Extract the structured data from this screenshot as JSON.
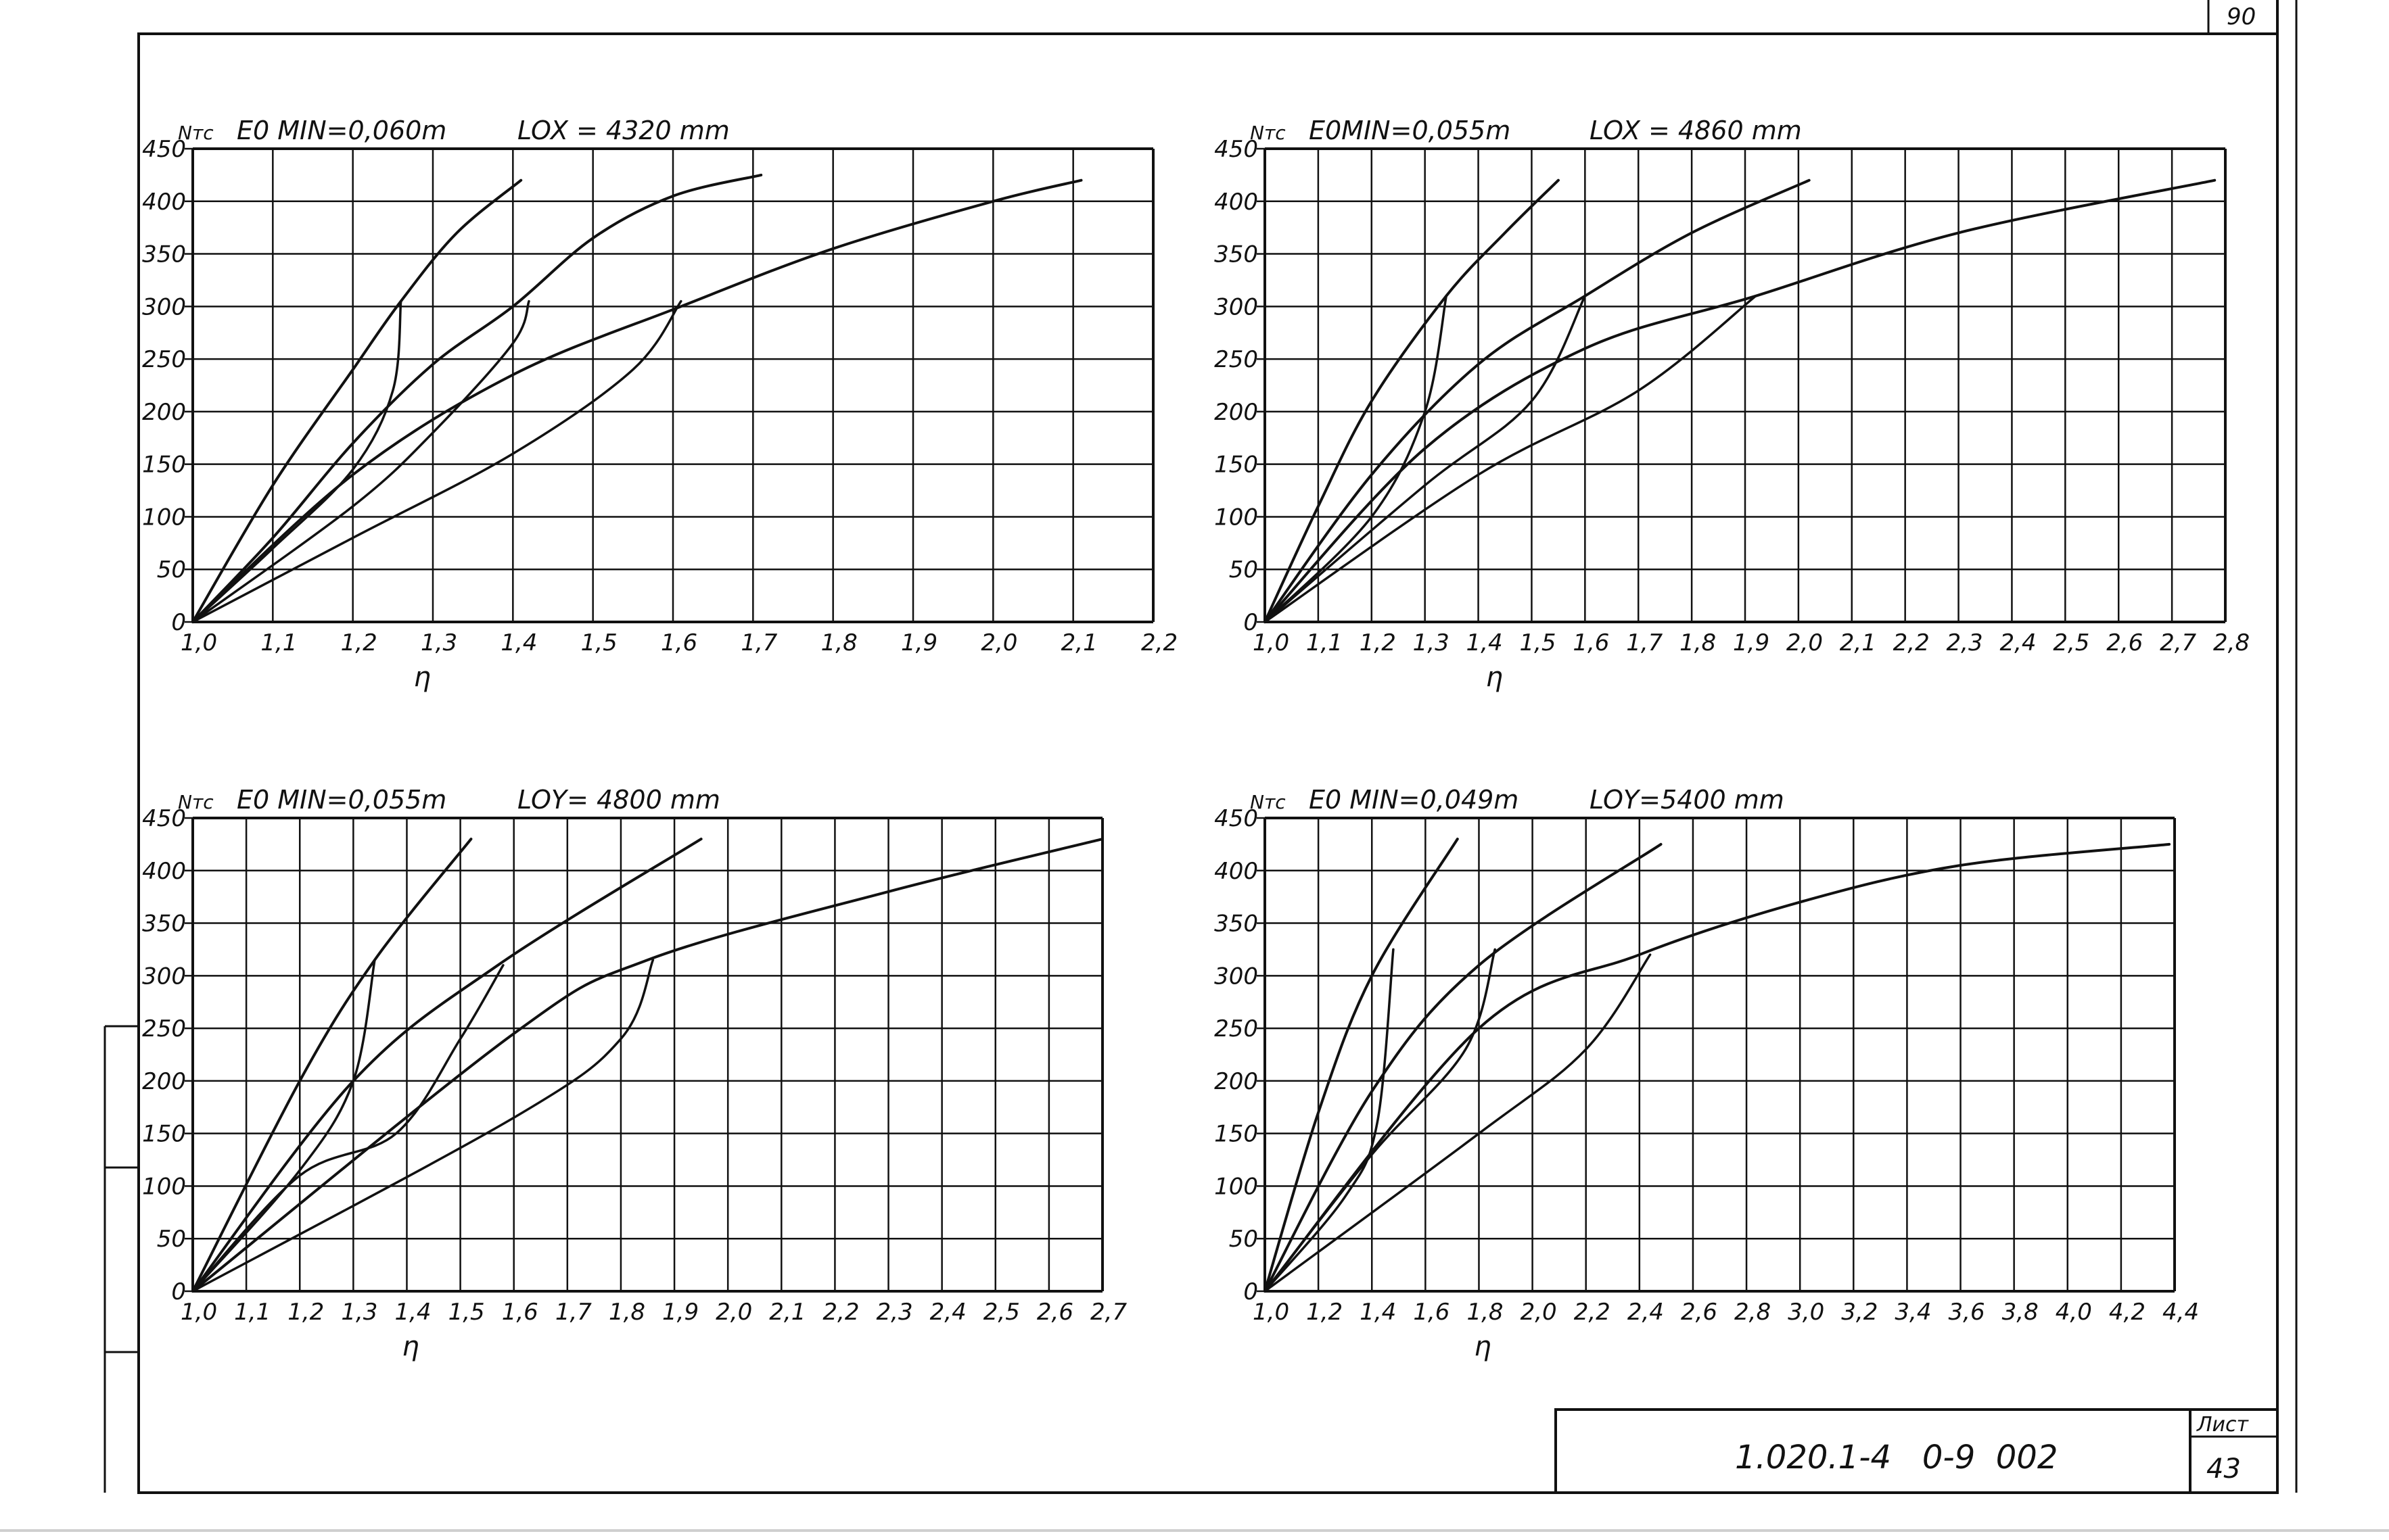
{
  "chart_data": [
    {
      "type": "line",
      "ylabel": "Nтс",
      "xlabel": "η",
      "header_left": "E0 MIN=0,060m",
      "header_right": "LOX = 4320 mm",
      "xlim": [
        1.0,
        2.2
      ],
      "ylim": [
        0,
        450
      ],
      "x_ticks": [
        "1,0",
        "1,1",
        "1,2",
        "1,3",
        "1,4",
        "1,5",
        "1,6",
        "1,7",
        "1,8",
        "1,9",
        "2,0",
        "2,1",
        "2,2"
      ],
      "y_ticks": [
        "0",
        "50",
        "100",
        "150",
        "200",
        "250",
        "300",
        "350",
        "400",
        "450"
      ],
      "series": [
        {
          "values": [
            [
              1.0,
              0
            ],
            [
              1.1,
              130
            ],
            [
              1.2,
              240
            ],
            [
              1.26,
              305
            ],
            [
              1.33,
              370
            ],
            [
              1.41,
              420
            ]
          ]
        },
        {
          "values": [
            [
              1.0,
              0
            ],
            [
              1.1,
              80
            ],
            [
              1.2,
              170
            ],
            [
              1.3,
              245
            ],
            [
              1.4,
              300
            ],
            [
              1.5,
              365
            ],
            [
              1.6,
              405
            ],
            [
              1.71,
              425
            ]
          ]
        },
        {
          "values": [
            [
              1.0,
              0
            ],
            [
              1.2,
              140
            ],
            [
              1.4,
              235
            ],
            [
              1.61,
              300
            ],
            [
              1.8,
              355
            ],
            [
              2.0,
              400
            ],
            [
              2.11,
              420
            ]
          ]
        },
        {
          "values": [
            [
              1.0,
              0
            ],
            [
              1.1,
              70
            ],
            [
              1.2,
              145
            ],
            [
              1.25,
              220
            ],
            [
              1.26,
              305
            ]
          ]
        },
        {
          "values": [
            [
              1.0,
              0
            ],
            [
              1.2,
              110
            ],
            [
              1.3,
              180
            ],
            [
              1.4,
              265
            ],
            [
              1.42,
              305
            ]
          ]
        },
        {
          "values": [
            [
              1.0,
              0
            ],
            [
              1.2,
              80
            ],
            [
              1.4,
              160
            ],
            [
              1.55,
              240
            ],
            [
              1.61,
              305
            ]
          ]
        }
      ]
    },
    {
      "type": "line",
      "ylabel": "Nтс",
      "xlabel": "η",
      "header_left": "E0MIN=0,055m",
      "header_right": "LOX = 4860 mm",
      "xlim": [
        1.0,
        2.8
      ],
      "ylim": [
        0,
        450
      ],
      "x_ticks": [
        "1,0",
        "1,1",
        "1,2",
        "1,3",
        "1,4",
        "1,5",
        "1,6",
        "1,7",
        "1,8",
        "1,9",
        "2,0",
        "2,1",
        "2,2",
        "2,3",
        "2,4",
        "2,5",
        "2,6",
        "2,7",
        "2,8"
      ],
      "y_ticks": [
        "0",
        "50",
        "100",
        "150",
        "200",
        "250",
        "300",
        "350",
        "400",
        "450"
      ],
      "series": [
        {
          "values": [
            [
              1.0,
              0
            ],
            [
              1.1,
              110
            ],
            [
              1.2,
              210
            ],
            [
              1.34,
              310
            ],
            [
              1.45,
              370
            ],
            [
              1.55,
              420
            ]
          ]
        },
        {
          "values": [
            [
              1.0,
              0
            ],
            [
              1.2,
              140
            ],
            [
              1.4,
              245
            ],
            [
              1.6,
              310
            ],
            [
              1.8,
              370
            ],
            [
              2.02,
              420
            ]
          ]
        },
        {
          "values": [
            [
              1.0,
              0
            ],
            [
              1.3,
              165
            ],
            [
              1.6,
              260
            ],
            [
              1.92,
              310
            ],
            [
              2.3,
              370
            ],
            [
              2.78,
              420
            ]
          ]
        },
        {
          "values": [
            [
              1.0,
              0
            ],
            [
              1.2,
              100
            ],
            [
              1.3,
              200
            ],
            [
              1.34,
              310
            ]
          ]
        },
        {
          "values": [
            [
              1.0,
              0
            ],
            [
              1.3,
              130
            ],
            [
              1.5,
              210
            ],
            [
              1.6,
              310
            ]
          ]
        },
        {
          "values": [
            [
              1.0,
              0
            ],
            [
              1.4,
              140
            ],
            [
              1.7,
              220
            ],
            [
              1.92,
              310
            ]
          ]
        }
      ]
    },
    {
      "type": "line",
      "ylabel": "Nтс",
      "xlabel": "η",
      "header_left": "E0 MIN=0,055m",
      "header_right": "LOY= 4800 mm",
      "xlim": [
        1.0,
        2.7
      ],
      "ylim": [
        0,
        450
      ],
      "x_ticks": [
        "1,0",
        "1,1",
        "1,2",
        "1,3",
        "1,4",
        "1,5",
        "1,6",
        "1,7",
        "1,8",
        "1,9",
        "2,0",
        "2,1",
        "2,2",
        "2,3",
        "2,4",
        "2,5",
        "2,6",
        "2,7"
      ],
      "y_ticks": [
        "0",
        "50",
        "100",
        "150",
        "200",
        "250",
        "300",
        "350",
        "400",
        "450"
      ],
      "series": [
        {
          "values": [
            [
              1.0,
              0
            ],
            [
              1.2,
              200
            ],
            [
              1.34,
              315
            ],
            [
              1.52,
              430
            ]
          ]
        },
        {
          "values": [
            [
              1.0,
              0
            ],
            [
              1.3,
              200
            ],
            [
              1.57,
              310
            ],
            [
              1.95,
              430
            ]
          ]
        },
        {
          "values": [
            [
              1.0,
              0
            ],
            [
              1.6,
              245
            ],
            [
              1.85,
              315
            ],
            [
              2.3,
              380
            ],
            [
              2.7,
              430
            ]
          ]
        },
        {
          "values": [
            [
              1.0,
              0
            ],
            [
              1.2,
              115
            ],
            [
              1.3,
              200
            ],
            [
              1.34,
              315
            ]
          ]
        },
        {
          "values": [
            [
              1.0,
              0
            ],
            [
              1.2,
              110
            ],
            [
              1.38,
              150
            ],
            [
              1.5,
              240
            ],
            [
              1.58,
              310
            ]
          ]
        },
        {
          "values": [
            [
              1.0,
              0
            ],
            [
              1.6,
              165
            ],
            [
              1.8,
              240
            ],
            [
              1.86,
              315
            ]
          ]
        }
      ]
    },
    {
      "type": "line",
      "ylabel": "Nтс",
      "xlabel": "η",
      "header_left": "E0 MIN=0,049m",
      "header_right": "LOY=5400 mm",
      "xlim": [
        1.0,
        4.4
      ],
      "ylim": [
        0,
        450
      ],
      "x_ticks": [
        "1,0",
        "1,2",
        "1,4",
        "1,6",
        "1,8",
        "2,0",
        "2,2",
        "2,4",
        "2,6",
        "2,8",
        "3,0",
        "3,2",
        "3,4",
        "3,6",
        "3,8",
        "4,0",
        "4,2",
        "4,4"
      ],
      "y_ticks": [
        "0",
        "50",
        "100",
        "150",
        "200",
        "250",
        "300",
        "350",
        "400",
        "450"
      ],
      "series": [
        {
          "values": [
            [
              1.0,
              0
            ],
            [
              1.2,
              170
            ],
            [
              1.4,
              300
            ],
            [
              1.72,
              430
            ]
          ]
        },
        {
          "values": [
            [
              1.0,
              0
            ],
            [
              1.4,
              190
            ],
            [
              1.8,
              310
            ],
            [
              2.48,
              425
            ]
          ]
        },
        {
          "values": [
            [
              1.0,
              0
            ],
            [
              1.8,
              250
            ],
            [
              2.4,
              320
            ],
            [
              3.0,
              370
            ],
            [
              3.6,
              405
            ],
            [
              4.38,
              425
            ]
          ]
        },
        {
          "values": [
            [
              1.0,
              0
            ],
            [
              1.3,
              90
            ],
            [
              1.42,
              160
            ],
            [
              1.48,
              325
            ]
          ]
        },
        {
          "values": [
            [
              1.0,
              0
            ],
            [
              1.4,
              130
            ],
            [
              1.75,
              230
            ],
            [
              1.86,
              325
            ]
          ]
        },
        {
          "values": [
            [
              1.0,
              0
            ],
            [
              1.8,
              150
            ],
            [
              2.2,
              230
            ],
            [
              2.44,
              320
            ]
          ]
        }
      ]
    }
  ],
  "title_block": {
    "code": "1.020.1-4   0-9  002",
    "sheet_label": "Лист",
    "sheet_number": "43"
  },
  "corner_number": "90"
}
